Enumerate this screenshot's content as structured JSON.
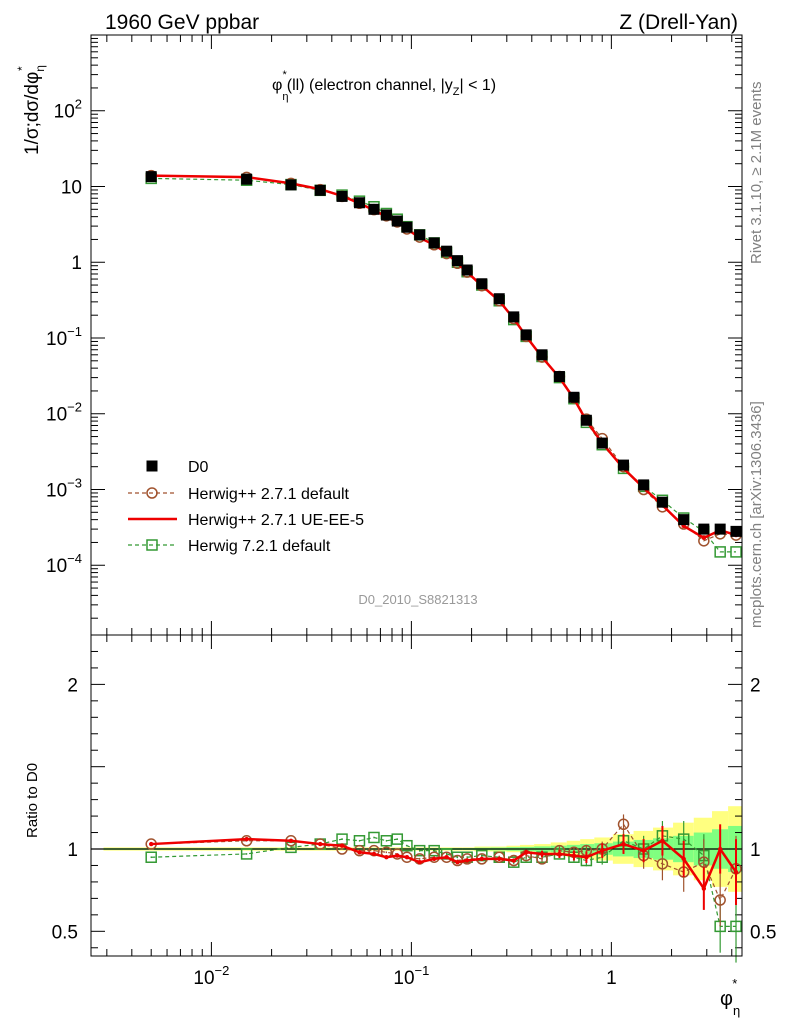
{
  "header": {
    "left": "1960 GeV ppbar",
    "right": "Z (Drell-Yan)"
  },
  "side_labels": {
    "rivet": "Rivet 3.1.10, ≥ 2.1M events",
    "mcplots": "mcplots.cern.ch [arXiv:1306.3436]"
  },
  "colors": {
    "data": "#000000",
    "herwigpp_default": "#a0522d",
    "herwigpp_ueee5": "#ee0000",
    "herwig7": "#339933",
    "band_yellow": "#ffff80",
    "band_green": "#80ff80"
  },
  "chart_data": [
    {
      "type": "scatter",
      "title_parts": {
        "phi": "φ",
        "sup": "*",
        "sub": "η",
        "rest1": "(ll) (electron channel, |y",
        "ysub": "Z",
        "rest2": "| < 1)"
      },
      "ylabel": "1/σ;dσ/dφ",
      "ylabel_sup": "*",
      "ylabel_sub": "η",
      "watermark": "D0_2010_S8821313",
      "xscale": "log",
      "yscale": "log",
      "xlim": [
        0.0025,
        4.5
      ],
      "ylim": [
        1.2e-05,
        1000
      ],
      "x_ticks": [
        {
          "value": 0.01,
          "base": "10",
          "exp": "−2"
        },
        {
          "value": 0.1,
          "base": "10",
          "exp": "−1"
        },
        {
          "value": 1,
          "base": "1",
          "exp": ""
        }
      ],
      "y_ticks": [
        {
          "value": 0.0001,
          "base": "10",
          "exp": "−4"
        },
        {
          "value": 0.001,
          "base": "10",
          "exp": "−3"
        },
        {
          "value": 0.01,
          "base": "10",
          "exp": "−2"
        },
        {
          "value": 0.1,
          "base": "10",
          "exp": "−1"
        },
        {
          "value": 1,
          "base": "1",
          "exp": ""
        },
        {
          "value": 10,
          "base": "10",
          "exp": ""
        },
        {
          "value": 100,
          "base": "10",
          "exp": "2"
        }
      ],
      "legend_position": "lower-left",
      "x": [
        0.005,
        0.015,
        0.025,
        0.035,
        0.045,
        0.055,
        0.065,
        0.075,
        0.085,
        0.095,
        0.11,
        0.13,
        0.15,
        0.17,
        0.19,
        0.225,
        0.275,
        0.325,
        0.375,
        0.45,
        0.55,
        0.65,
        0.75,
        0.9,
        1.15,
        1.45,
        1.8,
        2.3,
        2.9,
        3.5,
        4.2
      ],
      "series": [
        {
          "name": "D0",
          "style": "data",
          "values": [
            13.5,
            12.5,
            10.5,
            8.9,
            7.4,
            6.1,
            5.0,
            4.2,
            3.5,
            2.9,
            2.3,
            1.8,
            1.4,
            1.05,
            0.79,
            0.52,
            0.33,
            0.19,
            0.11,
            0.06,
            0.031,
            0.0165,
            0.0082,
            0.0041,
            0.0021,
            0.00115,
            0.00068,
            0.0004,
            0.0003,
            0.0003,
            0.00028
          ]
        },
        {
          "name": "Herwig++ 2.7.1 default",
          "style": "herwigpp_default",
          "values": [
            13.9,
            13.2,
            11.0,
            9.1,
            7.4,
            6.0,
            4.95,
            4.1,
            3.4,
            2.75,
            2.15,
            1.7,
            1.3,
            0.97,
            0.74,
            0.49,
            0.31,
            0.18,
            0.105,
            0.056,
            0.031,
            0.0162,
            0.0085,
            0.0047,
            0.002,
            0.001,
            0.00059,
            0.00035,
            0.00021,
            0.00026,
            0.00025
          ]
        },
        {
          "name": "Herwig++ 2.7.1 UE-EE-5",
          "style": "herwigpp_ueee5",
          "values": [
            13.9,
            13.3,
            11.0,
            9.2,
            7.5,
            6.0,
            4.85,
            4.0,
            3.35,
            2.75,
            2.1,
            1.7,
            1.32,
            0.97,
            0.74,
            0.49,
            0.31,
            0.18,
            0.105,
            0.056,
            0.03,
            0.0158,
            0.0081,
            0.0041,
            0.0019,
            0.00105,
            0.00062,
            0.00033,
            0.00023,
            0.00029,
            0.00025
          ]
        },
        {
          "name": "Herwig 7.2.1 default",
          "style": "herwig7",
          "values": [
            12.8,
            12.1,
            10.6,
            8.9,
            7.7,
            6.4,
            5.4,
            4.4,
            3.7,
            2.95,
            2.3,
            1.8,
            1.35,
            1.0,
            0.75,
            0.5,
            0.31,
            0.175,
            0.105,
            0.057,
            0.03,
            0.0158,
            0.0077,
            0.0039,
            0.0019,
            0.0011,
            0.00072,
            0.00042,
            0.00028,
            0.00015,
            0.00015
          ]
        }
      ]
    },
    {
      "type": "scatter",
      "ylabel": "Ratio to D0",
      "xlabel_parts": {
        "phi": "φ",
        "sup": "*",
        "sub": "η"
      },
      "xscale": "log",
      "yscale": "linear",
      "xlim": [
        0.0025,
        4.5
      ],
      "ylim": [
        0.35,
        2.3
      ],
      "y_ticks": [
        {
          "value": 0.5,
          "label": "0.5"
        },
        {
          "value": 1,
          "label": "1"
        },
        {
          "value": 2,
          "label": "2"
        }
      ],
      "x": [
        0.005,
        0.015,
        0.025,
        0.035,
        0.045,
        0.055,
        0.065,
        0.075,
        0.085,
        0.095,
        0.11,
        0.13,
        0.15,
        0.17,
        0.19,
        0.225,
        0.275,
        0.325,
        0.375,
        0.45,
        0.55,
        0.65,
        0.75,
        0.9,
        1.15,
        1.45,
        1.8,
        2.3,
        2.9,
        3.5,
        4.2
      ],
      "band": {
        "yellow_halfwidth": [
          0.01,
          0.01,
          0.01,
          0.01,
          0.01,
          0.01,
          0.01,
          0.01,
          0.01,
          0.01,
          0.01,
          0.01,
          0.01,
          0.01,
          0.01,
          0.015,
          0.015,
          0.02,
          0.025,
          0.03,
          0.04,
          0.05,
          0.06,
          0.07,
          0.09,
          0.11,
          0.13,
          0.16,
          0.19,
          0.23,
          0.26
        ],
        "green_halfwidth": [
          0.005,
          0.005,
          0.005,
          0.005,
          0.005,
          0.005,
          0.005,
          0.005,
          0.005,
          0.005,
          0.006,
          0.006,
          0.006,
          0.006,
          0.006,
          0.008,
          0.009,
          0.011,
          0.013,
          0.016,
          0.02,
          0.025,
          0.03,
          0.035,
          0.045,
          0.055,
          0.065,
          0.08,
          0.1,
          0.12,
          0.14
        ]
      },
      "series": [
        {
          "name": "Herwig++ 2.7.1 default",
          "style": "herwigpp_default",
          "values": [
            1.03,
            1.05,
            1.05,
            1.03,
            1.0,
            0.99,
            0.99,
            0.98,
            0.97,
            0.95,
            0.94,
            0.95,
            0.95,
            0.93,
            0.94,
            0.94,
            0.95,
            0.93,
            0.96,
            0.94,
            0.99,
            0.98,
            0.99,
            1.0,
            1.15,
            0.96,
            0.91,
            0.86,
            0.92,
            0.69,
            0.88
          ],
          "errors": [
            0.005,
            0.005,
            0.005,
            0.005,
            0.005,
            0.005,
            0.005,
            0.005,
            0.005,
            0.005,
            0.006,
            0.006,
            0.006,
            0.006,
            0.006,
            0.008,
            0.009,
            0.012,
            0.015,
            0.02,
            0.025,
            0.03,
            0.035,
            0.045,
            0.06,
            0.08,
            0.1,
            0.12,
            0.14,
            0.16,
            0.2
          ]
        },
        {
          "name": "Herwig++ 2.7.1 UE-EE-5",
          "style": "herwigpp_ueee5",
          "values": [
            1.03,
            1.06,
            1.05,
            1.03,
            1.02,
            0.98,
            0.97,
            0.95,
            0.96,
            0.95,
            0.92,
            0.94,
            0.95,
            0.92,
            0.93,
            0.94,
            0.94,
            0.93,
            0.98,
            0.97,
            0.97,
            0.96,
            0.95,
            0.99,
            1.03,
            0.99,
            1.05,
            0.94,
            0.76,
            1.0,
            0.86
          ],
          "errors": [
            0.005,
            0.005,
            0.005,
            0.005,
            0.005,
            0.005,
            0.005,
            0.005,
            0.005,
            0.005,
            0.006,
            0.006,
            0.006,
            0.006,
            0.006,
            0.008,
            0.009,
            0.012,
            0.015,
            0.02,
            0.025,
            0.03,
            0.035,
            0.045,
            0.06,
            0.07,
            0.09,
            0.11,
            0.13,
            0.15,
            0.2
          ]
        },
        {
          "name": "Herwig 7.2.1 default",
          "style": "herwig7",
          "values": [
            0.95,
            0.97,
            1.01,
            1.03,
            1.06,
            1.05,
            1.07,
            1.05,
            1.06,
            1.02,
            0.99,
            0.99,
            0.97,
            0.95,
            0.95,
            0.96,
            0.95,
            0.92,
            0.95,
            0.95,
            0.97,
            0.95,
            0.93,
            0.95,
            1.05,
            1.0,
            1.08,
            1.06,
            0.96,
            0.53,
            0.53
          ],
          "errors": [
            0.005,
            0.005,
            0.005,
            0.005,
            0.005,
            0.005,
            0.005,
            0.005,
            0.005,
            0.005,
            0.006,
            0.006,
            0.006,
            0.006,
            0.006,
            0.008,
            0.009,
            0.012,
            0.015,
            0.02,
            0.025,
            0.03,
            0.035,
            0.045,
            0.06,
            0.08,
            0.09,
            0.11,
            0.13,
            0.16,
            0.22
          ]
        }
      ]
    }
  ]
}
